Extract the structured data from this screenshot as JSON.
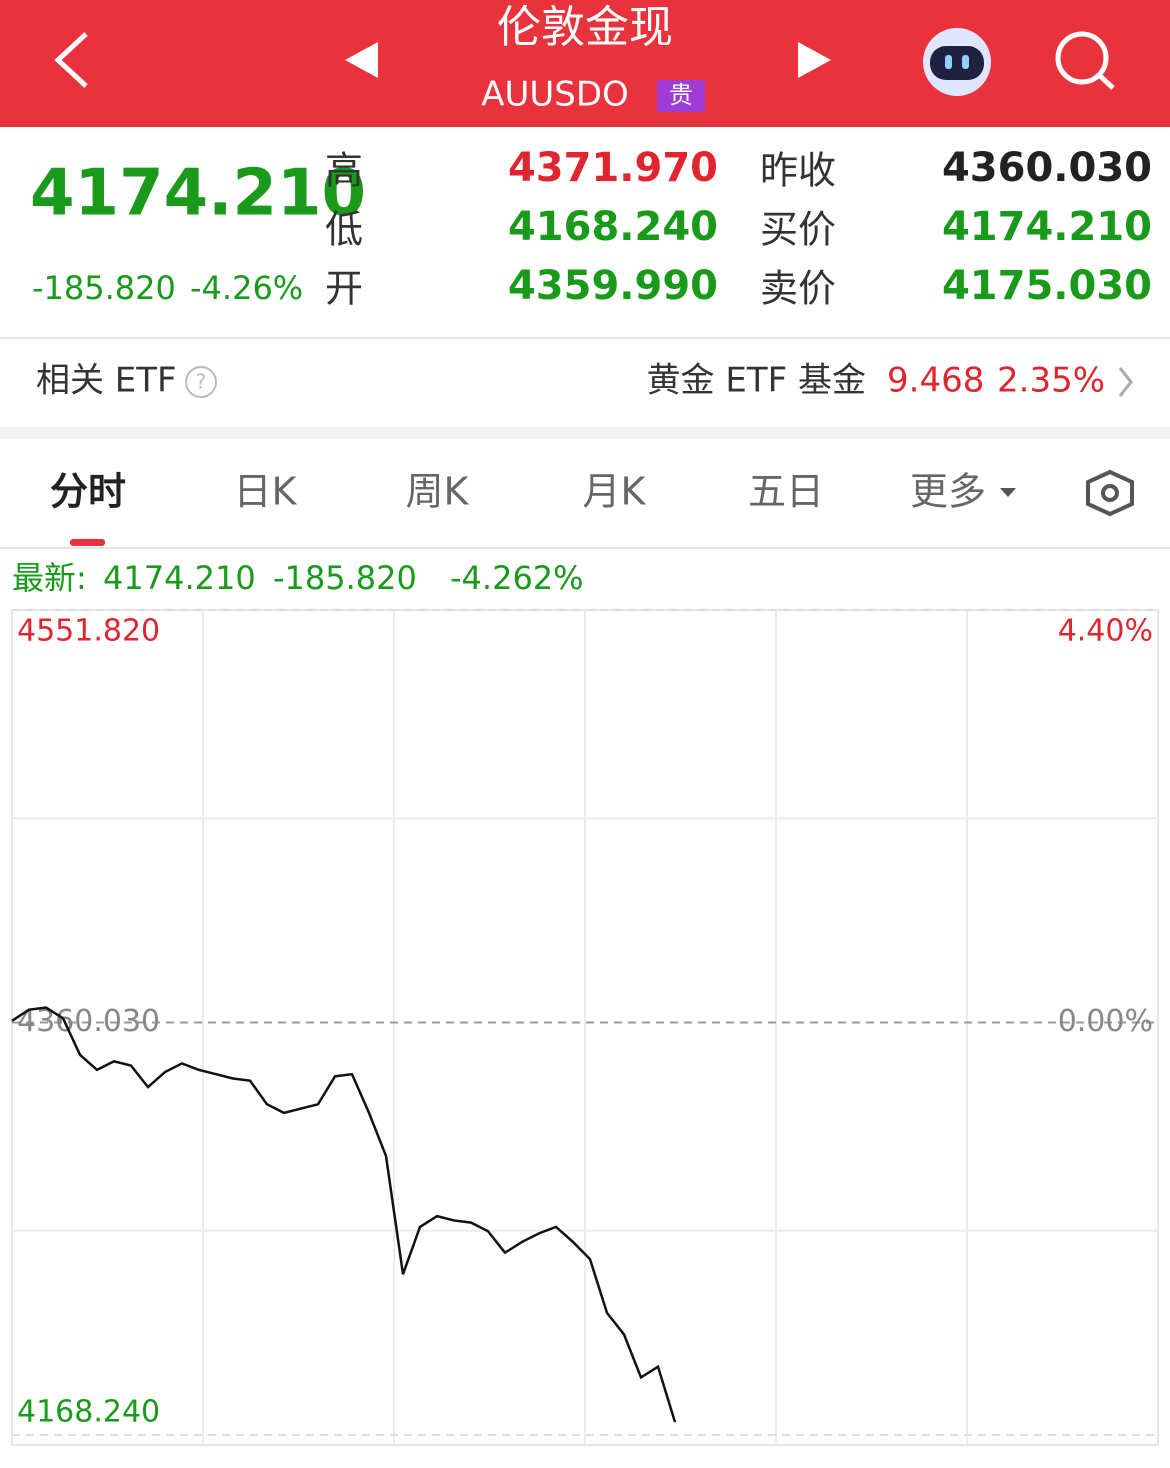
{
  "header": {
    "title": "伦敦金现",
    "code": "AUUSDO",
    "badge": "贵"
  },
  "quote": {
    "price": "4174.210",
    "change": "-185.820",
    "change_pct": "-4.26%",
    "left_stats": [
      {
        "label": "高",
        "value": "4371.970"
      },
      {
        "label": "低",
        "value": "4168.240"
      },
      {
        "label": "开",
        "value": "4359.990"
      }
    ],
    "right_stats": [
      {
        "label": "昨收",
        "value": "4360.030"
      },
      {
        "label": "买价",
        "value": "4174.210"
      },
      {
        "label": "卖价",
        "value": "4175.030"
      }
    ]
  },
  "etf": {
    "label": "相关 ETF",
    "name": "黄金 ETF 基金",
    "price": "9.468",
    "change_pct": "2.35%"
  },
  "tabs": [
    "分时",
    "日K",
    "周K",
    "月K",
    "五日",
    "更多"
  ],
  "chart_data": {
    "type": "line",
    "latest_label": "最新:",
    "latest": "4174.210",
    "latest_change": "-185.820",
    "latest_pct": "-4.262%",
    "color": "#111111",
    "ylim": [
      4168.24,
      4551.82
    ],
    "yticks": [
      {
        "value": 4168.24,
        "label": "4168.240"
      },
      {
        "value": 4360.03,
        "label": "4360.030"
      },
      {
        "value": 4551.82,
        "label": "4551.820"
      }
    ],
    "y2lim": [
      -4.4,
      4.4
    ],
    "y2ticks": [
      {
        "value": 0,
        "label": "0.00%"
      },
      {
        "value": 4.4,
        "label": "4.40%"
      }
    ],
    "values": [
      4360.8,
      4366,
      4367,
      4362,
      4345,
      4338,
      4342,
      4340,
      4330,
      4337,
      4341,
      4338,
      4336,
      4334,
      4333,
      4322,
      4318,
      4320,
      4322,
      4335,
      4336,
      4318,
      4298,
      4243,
      4265,
      4270,
      4268,
      4267,
      4263,
      4253,
      4258,
      4262,
      4265,
      4258,
      4250,
      4225,
      4215,
      4195,
      4200,
      4174.21
    ]
  }
}
